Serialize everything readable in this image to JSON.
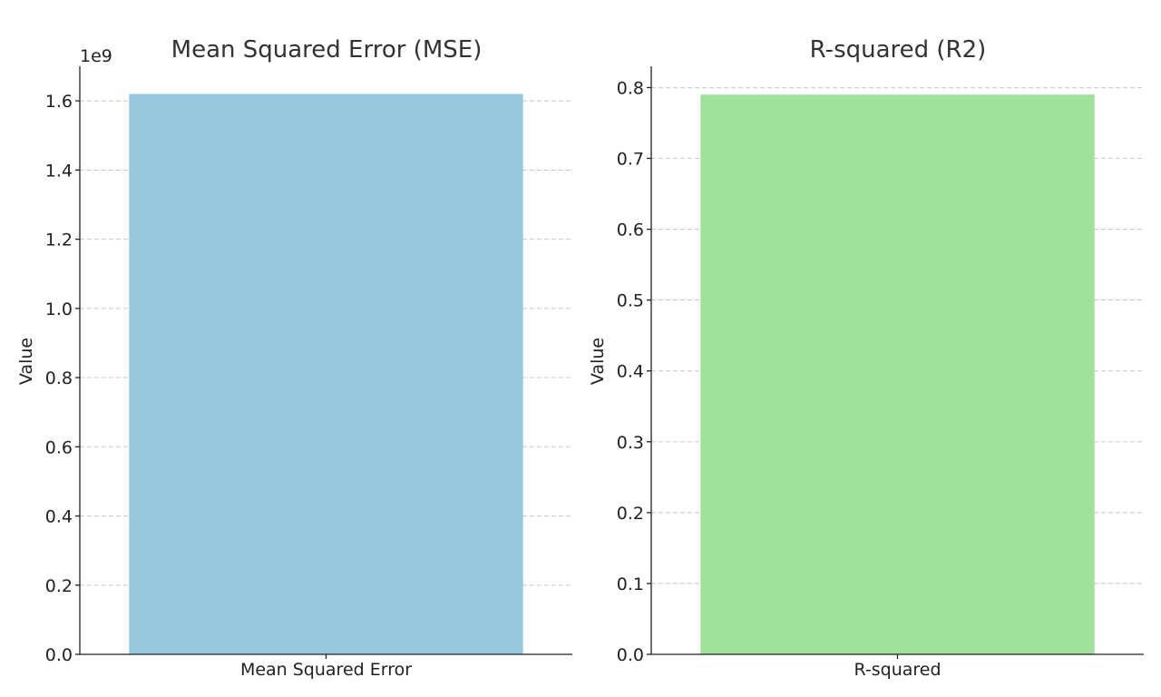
{
  "chart_data": [
    {
      "type": "bar",
      "title": "Mean Squared Error (MSE)",
      "xlabel": "",
      "ylabel": "Value",
      "categories": [
        "Mean Squared Error"
      ],
      "values": [
        1620000000
      ],
      "ylim": [
        0,
        1700000000
      ],
      "ytick_values": [
        0,
        200000000,
        400000000,
        600000000,
        800000000,
        1000000000,
        1200000000,
        1400000000,
        1600000000
      ],
      "ytick_labels": [
        "0.0",
        "0.2",
        "0.4",
        "0.6",
        "0.8",
        "1.0",
        "1.2",
        "1.4",
        "1.6"
      ],
      "y_offset_text": "1e9",
      "grid": "y",
      "bar_color": "#96c9dd"
    },
    {
      "type": "bar",
      "title": "R-squared (R2)",
      "xlabel": "",
      "ylabel": "Value",
      "categories": [
        "R-squared"
      ],
      "values": [
        0.79
      ],
      "ylim": [
        0,
        0.83
      ],
      "ytick_values": [
        0,
        0.1,
        0.2,
        0.3,
        0.4,
        0.5,
        0.6,
        0.7,
        0.8
      ],
      "ytick_labels": [
        "0.0",
        "0.1",
        "0.2",
        "0.3",
        "0.4",
        "0.5",
        "0.6",
        "0.7",
        "0.8"
      ],
      "y_offset_text": "",
      "grid": "y",
      "bar_color": "#9ee29c"
    }
  ]
}
